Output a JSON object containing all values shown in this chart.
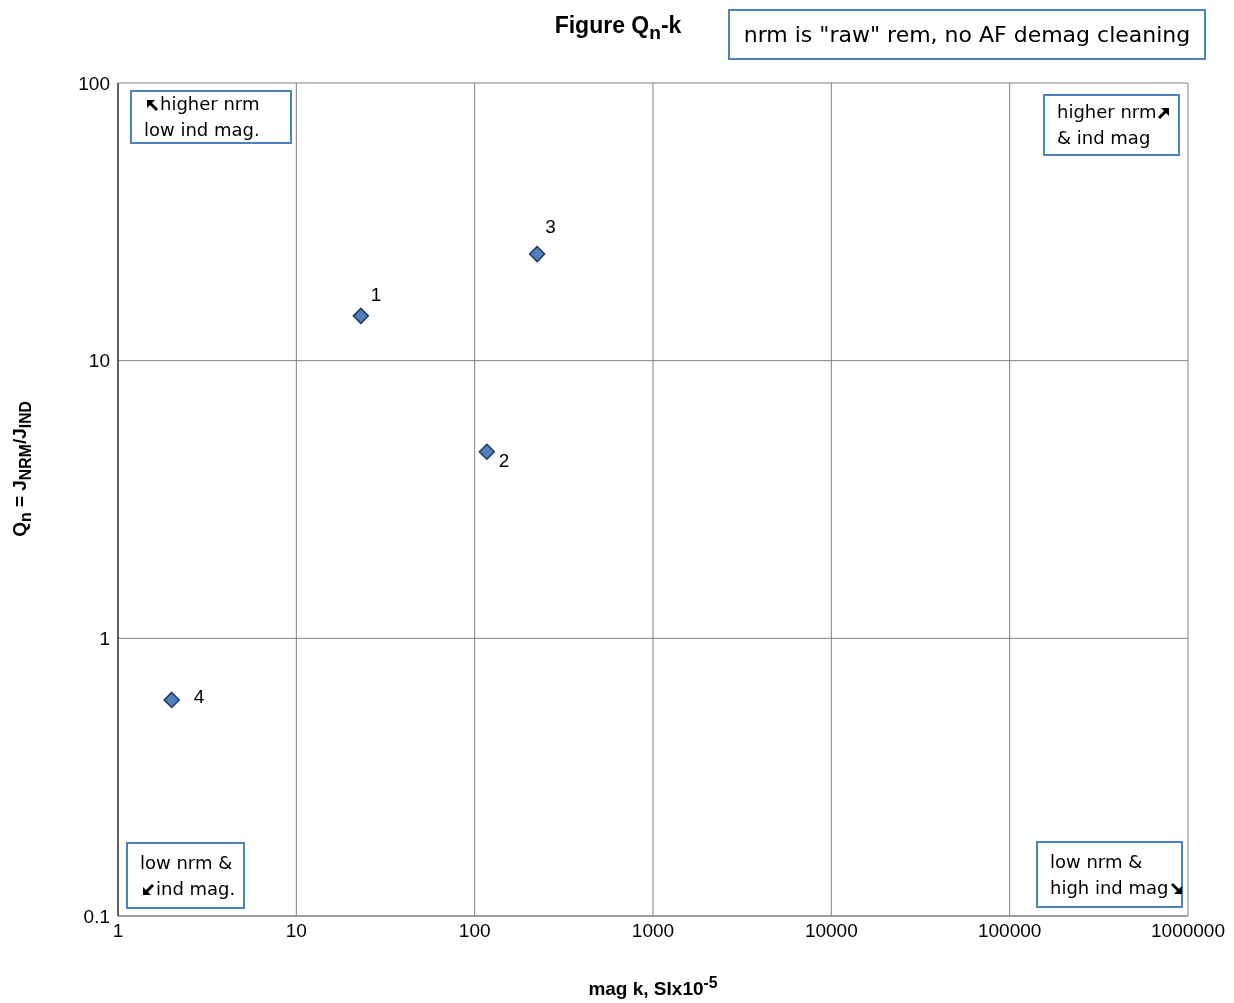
{
  "chart_data": {
    "type": "scatter",
    "title": "Figure Q$_{n}$-k",
    "xlabel": "mag k, SIx10$^{-5}$",
    "ylabel": "Q$_{n}$ = J$_{NRM}$/J$_{IND}$",
    "x": [
      23,
      117,
      224,
      2
    ],
    "series": [
      {
        "color": "#4f81bd",
        "values": [
          14.5,
          4.7,
          24.2,
          0.6
        ]
      }
    ],
    "log": "xy",
    "xlim": [
      1,
      1000000
    ],
    "xticks": [
      1,
      10,
      100,
      1000,
      10000,
      100000,
      1000000
    ],
    "ylim": [
      0.1,
      100
    ],
    "yticks": [
      0.1,
      1,
      10,
      100
    ],
    "grid": true,
    "marker": "diamond",
    "annotations": [
      "nrm is \"raw\" rem, no AF demag cleaning",
      "higher nrm\nlow ind mag.",
      "higher nrm\n& ind mag",
      "low nrm &\nind mag.",
      "low nrm &\nhigh ind mag",
      {
        "text": "1",
        "x": 23,
        "y": 14.5
      },
      {
        "text": "2",
        "x": 117,
        "y": 4.7
      },
      {
        "text": "3",
        "x": 224,
        "y": 24.2
      },
      {
        "text": "4",
        "x": 2,
        "y": 0.6
      }
    ]
  }
}
